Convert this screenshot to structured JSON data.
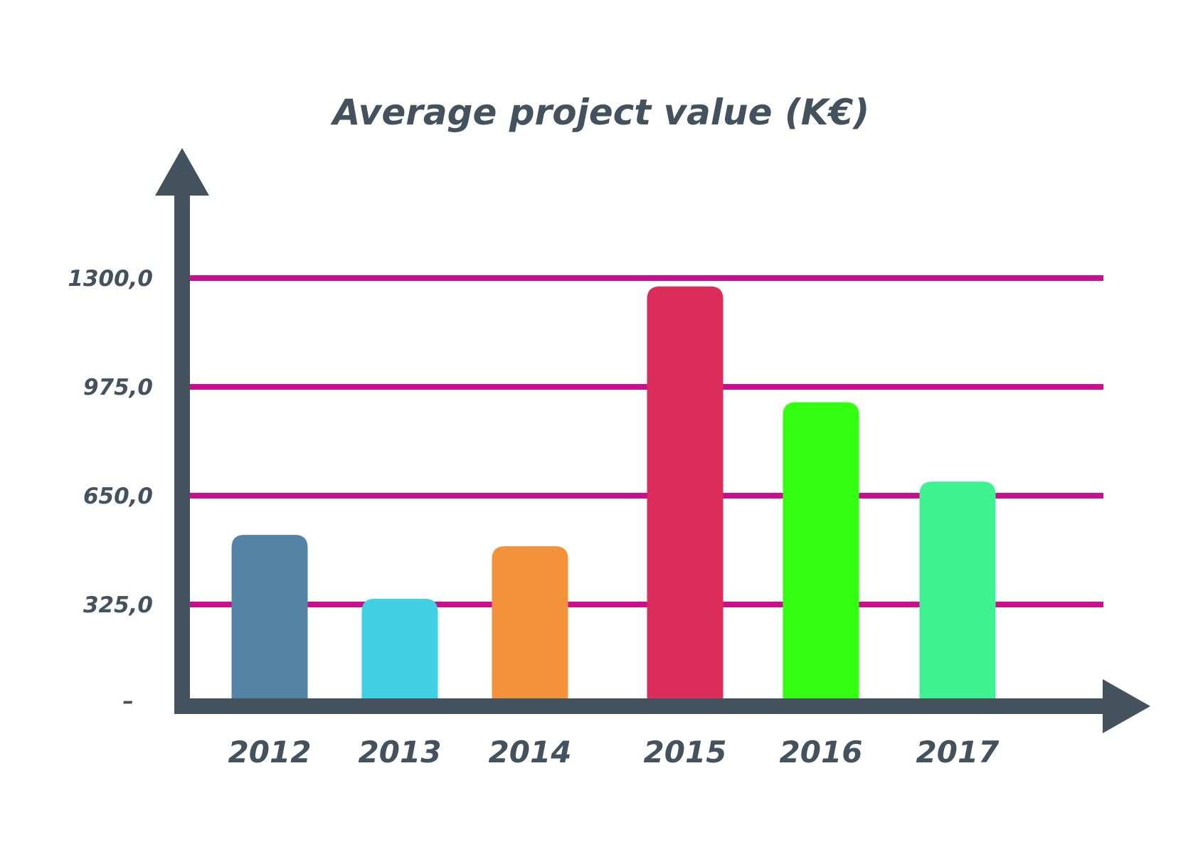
{
  "chart_data": {
    "type": "bar",
    "title": "Average project value (K€)",
    "xlabel": "",
    "ylabel": "",
    "categories": [
      "2012",
      "2013",
      "2014",
      "2015",
      "2016",
      "2017"
    ],
    "values": [
      533,
      342,
      499,
      1275,
      929,
      692
    ],
    "colors": [
      "#5483a5",
      "#3fd0e3",
      "#f4913b",
      "#dc2c5b",
      "#33ff10",
      "#3ef291"
    ],
    "yticks": [
      325,
      650,
      975,
      1300
    ],
    "ytick_labels": [
      "325,0",
      "650,0",
      "975,0",
      "1300,0"
    ],
    "zero_label": "–",
    "ylim": [
      0,
      1300
    ],
    "grid": true,
    "grid_color": "#c90f8f",
    "axis_color": "#44525e",
    "legend": "none"
  }
}
